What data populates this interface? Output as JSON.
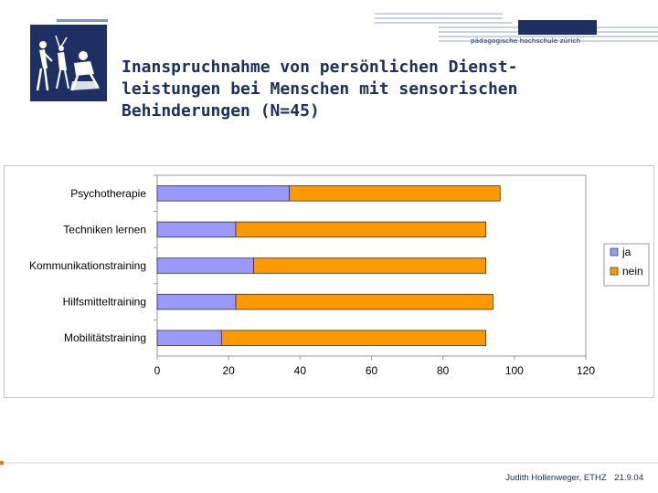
{
  "header": {
    "brand": "pädagogische hochschule zürich",
    "title_lines": [
      "Inanspruchnahme von persönlichen Dienst-",
      "leistungen bei Menschen mit sensorischen",
      "Behinderungen (N=45)"
    ]
  },
  "colors": {
    "brand_blue": "#1d2f63",
    "ja": "#9999ff",
    "nein": "#ff9900"
  },
  "chart_data": {
    "type": "bar",
    "orientation": "horizontal",
    "stacked": true,
    "title": "",
    "xlabel": "",
    "ylabel": "",
    "categories": [
      "Psychotherapie",
      "Techniken lernen",
      "Kommunikationstraining",
      "Hilfsmitteltraining",
      "Mobilitätstraining"
    ],
    "series": [
      {
        "name": "ja",
        "values": [
          37,
          22,
          27,
          22,
          18
        ]
      },
      {
        "name": "nein",
        "values": [
          59,
          70,
          65,
          72,
          74
        ]
      }
    ],
    "xlim": [
      0,
      120
    ],
    "xticks": [
      "0",
      "20",
      "40",
      "60",
      "80",
      "100",
      "120"
    ],
    "grid": false,
    "legend_position": "right"
  },
  "footer": {
    "author": "Judith Hollenweger, ETHZ",
    "date": "21.9.04"
  }
}
